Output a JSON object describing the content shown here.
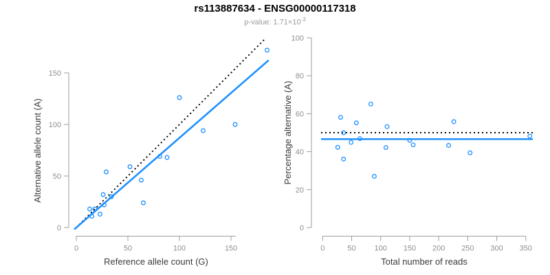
{
  "figure": {
    "title": "rs113887634 - ENSG00000117318",
    "subtitle_prefix": "p-value: 1.71×10",
    "subtitle_exponent": "-3"
  },
  "colors": {
    "points": "#1E90FF",
    "fit_line": "#1E90FF",
    "reference_line": "#000000",
    "axis": "#9c9c9c",
    "tick_label": "#8f8f8f",
    "axis_title": "#3a3a3a",
    "title": "#000000",
    "subtitle": "#9a9a9a"
  },
  "chart_data": [
    {
      "type": "scatter",
      "panel": "left",
      "xlabel": "Reference allele count (G)",
      "ylabel": "Alternative allele count (A)",
      "xticks": [
        0,
        50,
        100,
        150
      ],
      "yticks": [
        0,
        50,
        100,
        150
      ],
      "xlim": [
        0,
        187
      ],
      "ylim": [
        0,
        183
      ],
      "grid": false,
      "points": [
        [
          13,
          18
        ],
        [
          15,
          11
        ],
        [
          18,
          18
        ],
        [
          23,
          13
        ],
        [
          26,
          32
        ],
        [
          27,
          22
        ],
        [
          29,
          54
        ],
        [
          34,
          30
        ],
        [
          52,
          59
        ],
        [
          63,
          46
        ],
        [
          65,
          24
        ],
        [
          81,
          69
        ],
        [
          88,
          68
        ],
        [
          100,
          126
        ],
        [
          123,
          94
        ],
        [
          154,
          100
        ],
        [
          185,
          172
        ]
      ],
      "reference_line": {
        "style": "dotted",
        "type": "identity",
        "slope": 1,
        "intercept": 0,
        "x_range": [
          0,
          183
        ]
      },
      "fit_line": {
        "style": "solid",
        "slope": 0.87,
        "intercept": 0,
        "x_range": [
          -2,
          186.5
        ]
      }
    },
    {
      "type": "scatter",
      "panel": "right",
      "xlabel": "Total number of reads",
      "ylabel": "Percentage alternative (A)",
      "xticks": [
        0,
        50,
        100,
        150,
        200,
        250,
        300,
        350
      ],
      "yticks": [
        0,
        20,
        40,
        60,
        80,
        100
      ],
      "xlim": [
        0,
        365
      ],
      "ylim": [
        0,
        100
      ],
      "grid": false,
      "points": [
        [
          31,
          58.1
        ],
        [
          26,
          42.3
        ],
        [
          36,
          50.0
        ],
        [
          36,
          36.1
        ],
        [
          58,
          55.2
        ],
        [
          49,
          44.9
        ],
        [
          83,
          65.1
        ],
        [
          64,
          46.9
        ],
        [
          111,
          53.2
        ],
        [
          109,
          42.2
        ],
        [
          89,
          27.0
        ],
        [
          150,
          46.0
        ],
        [
          156,
          43.6
        ],
        [
          226,
          55.8
        ],
        [
          217,
          43.3
        ],
        [
          254,
          39.4
        ],
        [
          357,
          48.2
        ]
      ],
      "reference_line": {
        "style": "dotted",
        "value": 50
      },
      "fit_line": {
        "style": "solid",
        "value": 46.6
      }
    }
  ]
}
